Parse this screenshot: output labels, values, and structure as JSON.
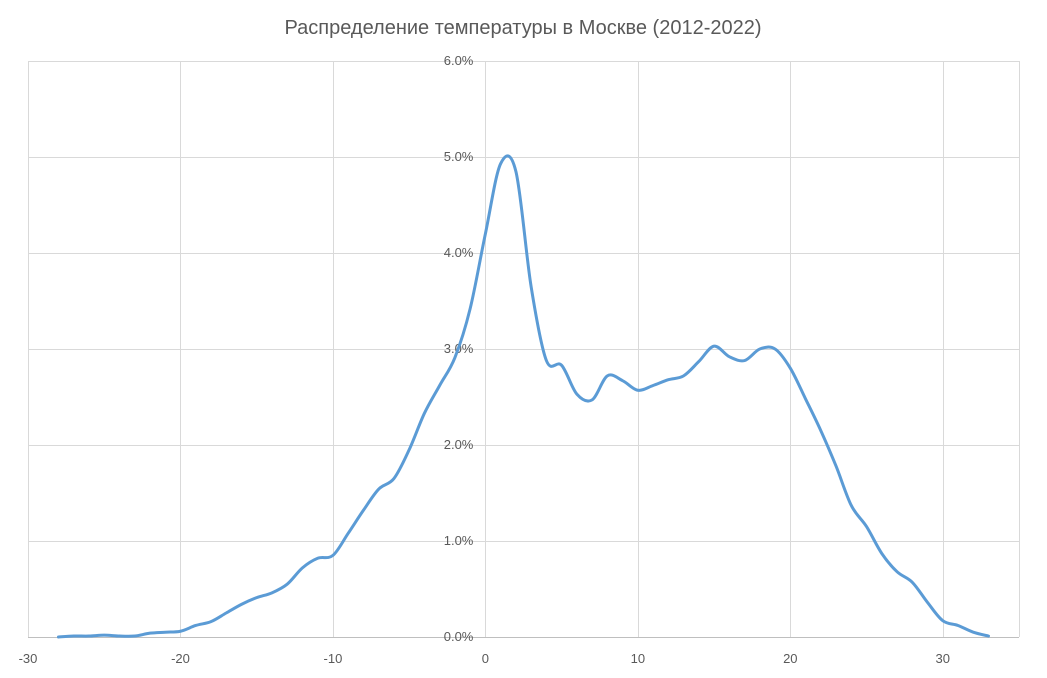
{
  "chart_data": {
    "type": "line",
    "title": "Распределение температуры в Москве (2012-2022)",
    "xlabel": "",
    "ylabel": "",
    "xlim": [
      -30,
      35
    ],
    "ylim": [
      0,
      0.06
    ],
    "x_ticks": [
      -30,
      -20,
      -10,
      0,
      10,
      20,
      30
    ],
    "x_tick_labels": [
      "-30",
      "-20",
      "-10",
      "0",
      "10",
      "20",
      "30"
    ],
    "y_ticks": [
      0,
      0.01,
      0.02,
      0.03,
      0.04,
      0.05,
      0.06
    ],
    "y_tick_labels": [
      "0.0%",
      "1.0%",
      "2.0%",
      "3.0%",
      "4.0%",
      "5.0%",
      "6.0%"
    ],
    "grid": true,
    "legend": "none",
    "color": "#5b9bd5",
    "series": [
      {
        "x": [
          -28,
          -27,
          -26,
          -25,
          -24,
          -23,
          -22,
          -21,
          -20,
          -19,
          -18,
          -17,
          -16,
          -15,
          -14,
          -13,
          -12,
          -11,
          -10,
          -9,
          -8,
          -7,
          -6,
          -5,
          -4,
          -3,
          -2,
          -1,
          0,
          1,
          2,
          3,
          4,
          5,
          6,
          7,
          8,
          9,
          10,
          11,
          12,
          13,
          14,
          15,
          16,
          17,
          18,
          19,
          20,
          21,
          22,
          23,
          24,
          25,
          26,
          27,
          28,
          29,
          30,
          31,
          32,
          33
        ],
        "values": [
          0.0,
          0.0001,
          0.0001,
          0.0002,
          0.0001,
          0.0001,
          0.0004,
          0.0005,
          0.0006,
          0.0012,
          0.0016,
          0.0025,
          0.0034,
          0.0041,
          0.0046,
          0.0055,
          0.0072,
          0.0082,
          0.0085,
          0.0108,
          0.0132,
          0.0154,
          0.0165,
          0.0195,
          0.0233,
          0.0262,
          0.0291,
          0.0342,
          0.042,
          0.0493,
          0.0485,
          0.0365,
          0.0288,
          0.0283,
          0.0253,
          0.0247,
          0.0272,
          0.0267,
          0.0257,
          0.0262,
          0.0268,
          0.0272,
          0.0287,
          0.0303,
          0.0292,
          0.0288,
          0.03,
          0.03,
          0.028,
          0.0248,
          0.0215,
          0.0178,
          0.0137,
          0.0115,
          0.0087,
          0.0068,
          0.0057,
          0.0036,
          0.0017,
          0.0012,
          0.0005,
          0.0001
        ]
      }
    ]
  }
}
